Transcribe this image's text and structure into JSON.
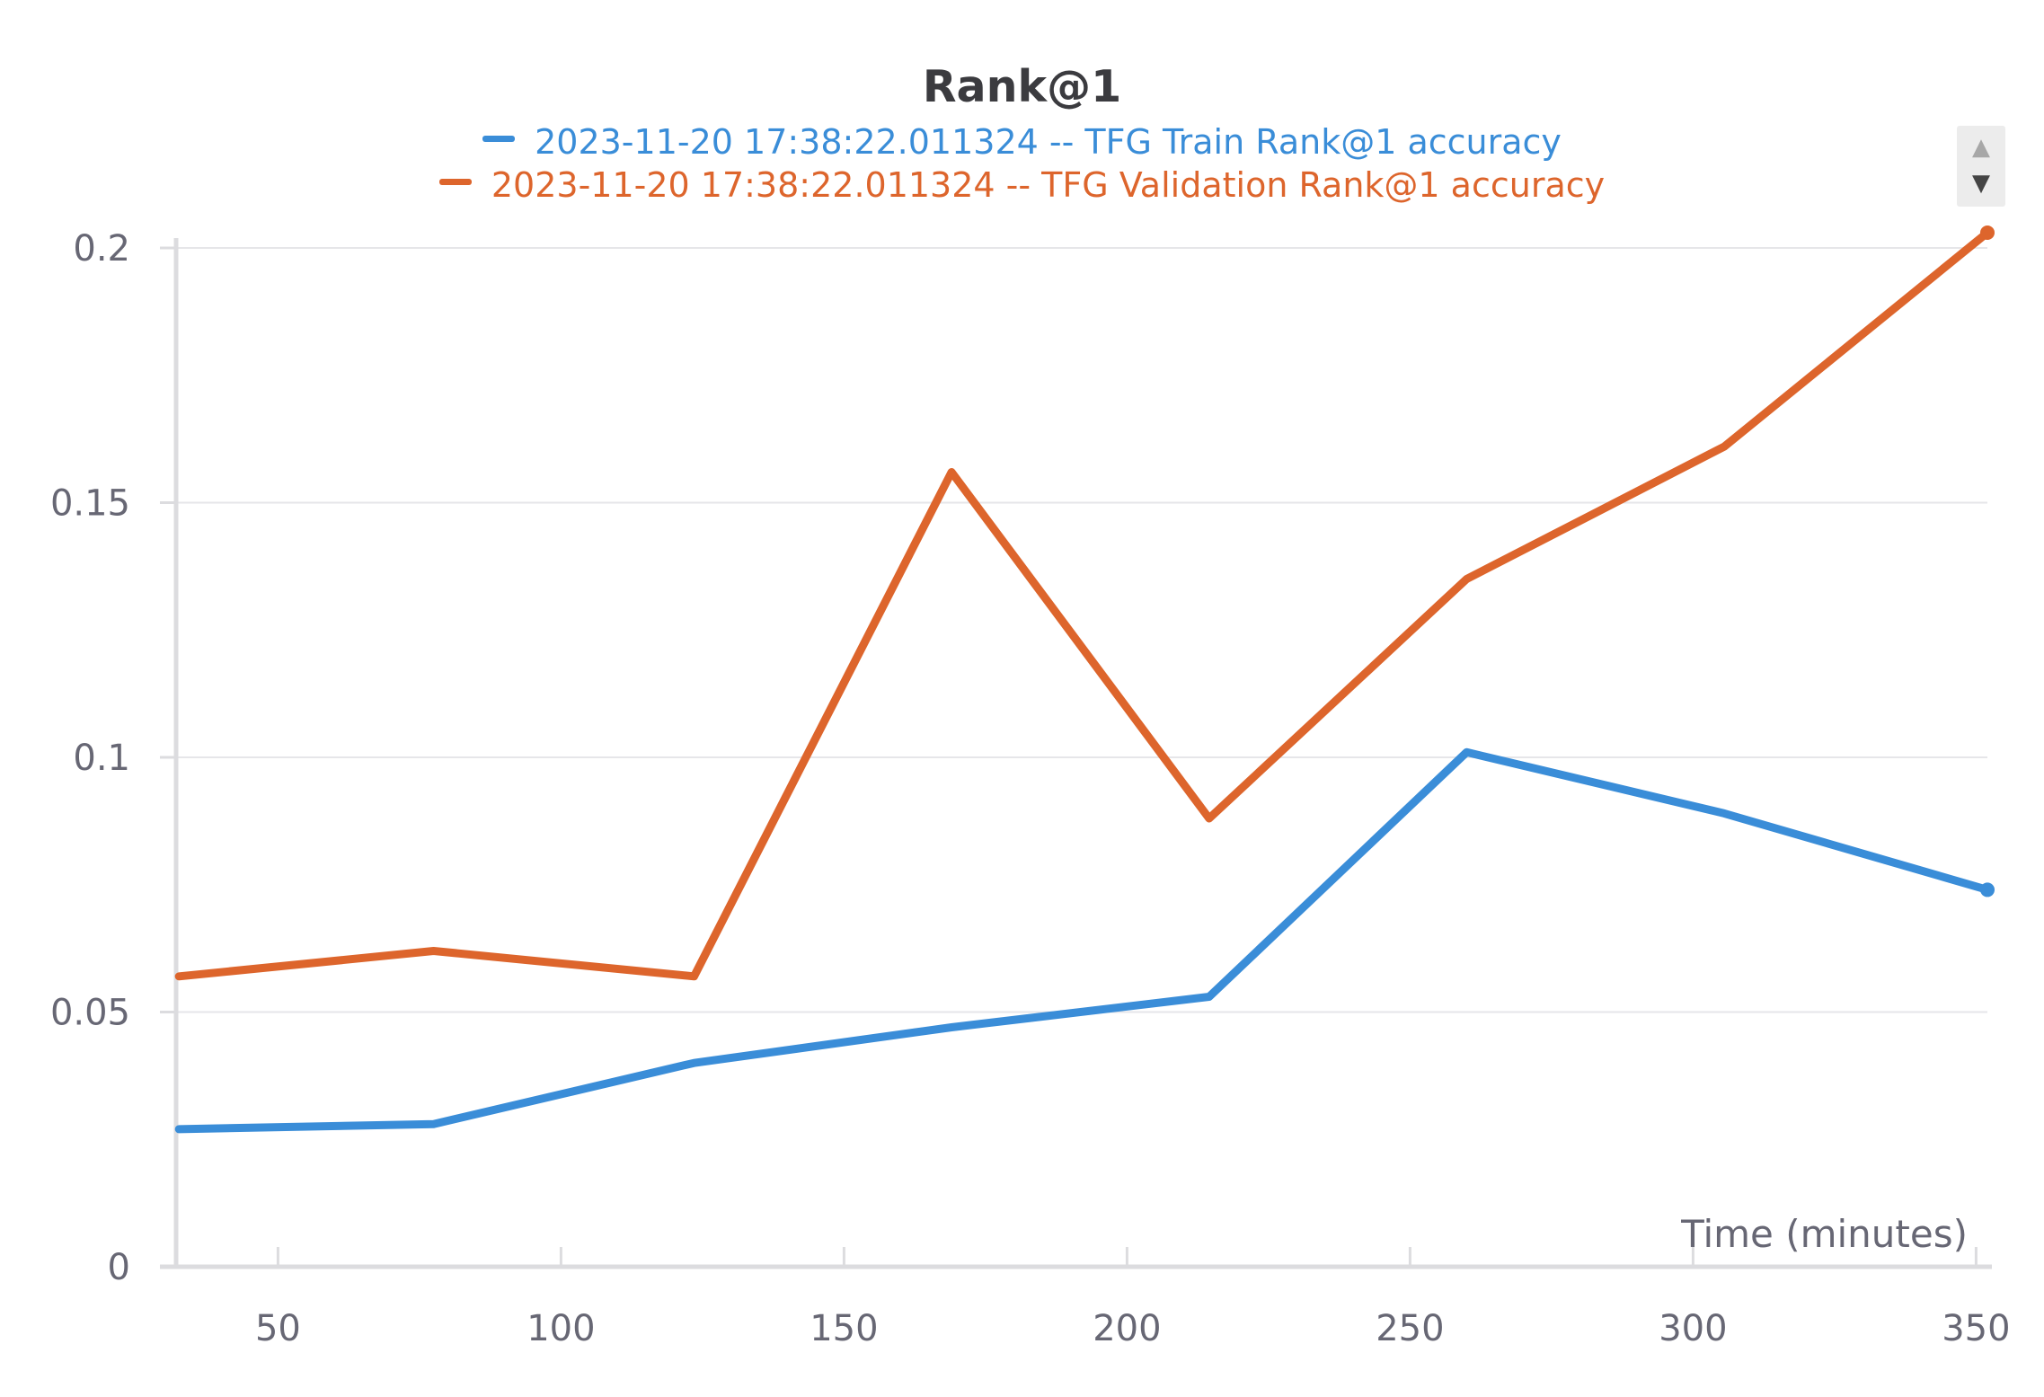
{
  "chart_data": {
    "type": "line",
    "title": "Rank@1",
    "xlabel": "Time (minutes)",
    "ylabel": "",
    "xlim": [
      32,
      352
    ],
    "ylim": [
      0,
      0.2
    ],
    "x_ticks": [
      50,
      100,
      150,
      200,
      250,
      300,
      350
    ],
    "x_tick_labels": [
      "50",
      "100",
      "150",
      "200",
      "250",
      "300",
      "350"
    ],
    "y_ticks": [
      0,
      0.05,
      0.1,
      0.15,
      0.2
    ],
    "y_tick_labels": [
      "0",
      "0.05",
      "0.1",
      "0.15",
      "0.2"
    ],
    "grid": true,
    "legend_position": "top-center",
    "series": [
      {
        "name": "2023-11-20 17:38:22.011324 -- TFG Train Rank@1 accuracy",
        "color": "#3a8dd8",
        "x": [
          32.5,
          77.5,
          123.5,
          169,
          214.5,
          260,
          305.5,
          352
        ],
        "y": [
          0.027,
          0.028,
          0.04,
          0.047,
          0.053,
          0.101,
          0.089,
          0.074
        ]
      },
      {
        "name": "2023-11-20 17:38:22.011324 -- TFG Validation Rank@1 accuracy",
        "color": "#dd652c",
        "x": [
          32.5,
          77.5,
          123.5,
          169,
          214.5,
          260,
          305.5,
          352
        ],
        "y": [
          0.057,
          0.062,
          0.057,
          0.156,
          0.088,
          0.135,
          0.161,
          0.203
        ]
      }
    ]
  },
  "pager": {
    "up_icon": "triangle-up-icon",
    "down_icon": "triangle-down-icon"
  }
}
